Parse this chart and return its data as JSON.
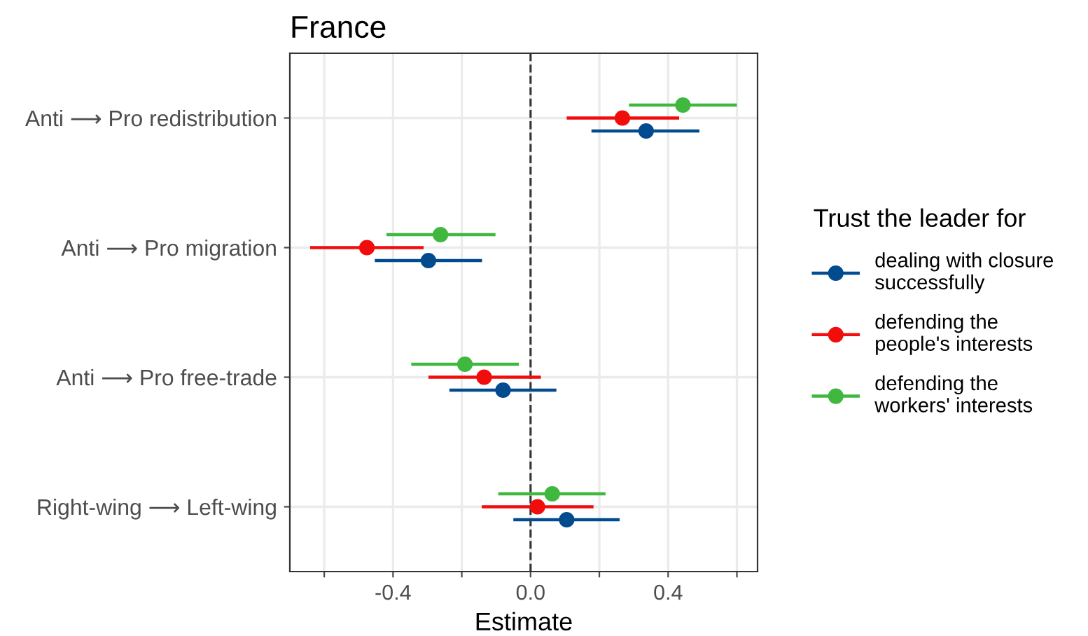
{
  "chart_data": {
    "type": "scatter",
    "orientation": "horizontal",
    "title": "France",
    "xlabel": "Estimate",
    "legend_title": "Trust the leader for",
    "categories": [
      "Anti ⟶ Pro redistribution",
      "Anti ⟶ Pro migration",
      "Anti ⟶ Pro free-trade",
      "Right-wing ⟶ Left-wing"
    ],
    "series": [
      {
        "name": "dealing with closure\nsuccessfully",
        "color": "#034b8f",
        "values": [
          0.336,
          -0.297,
          -0.08,
          0.105
        ],
        "errors": [
          [
            0.177,
            0.491
          ],
          [
            -0.453,
            -0.141
          ],
          [
            -0.236,
            0.075
          ],
          [
            -0.05,
            0.259
          ]
        ]
      },
      {
        "name": "defending the\npeople's interests",
        "color": "#f20d0d",
        "values": [
          0.267,
          -0.476,
          -0.135,
          0.02
        ],
        "errors": [
          [
            0.105,
            0.432
          ],
          [
            -0.641,
            -0.311
          ],
          [
            -0.297,
            0.03
          ],
          [
            -0.142,
            0.183
          ]
        ]
      },
      {
        "name": "defending the\nworkers' interests",
        "color": "#40b840",
        "values": [
          0.443,
          -0.262,
          -0.191,
          0.063
        ],
        "errors": [
          [
            0.286,
            0.6
          ],
          [
            -0.419,
            -0.102
          ],
          [
            -0.347,
            -0.034
          ],
          [
            -0.094,
            0.218
          ]
        ]
      }
    ],
    "xlim": [
      -0.7,
      0.66
    ],
    "xticks": [
      {
        "value": -0.6,
        "label": null
      },
      {
        "value": -0.4,
        "label": "-0.4"
      },
      {
        "value": -0.2,
        "label": null
      },
      {
        "value": 0,
        "label": "0.0"
      },
      {
        "value": 0.2,
        "label": null
      },
      {
        "value": 0.4,
        "label": "0.4"
      },
      {
        "value": 0.6,
        "label": null
      }
    ],
    "ref_lines": [
      {
        "axis": "x",
        "value": 0,
        "line_style": "dashed",
        "color": "#333333"
      }
    ],
    "grid": true,
    "legend": "right",
    "marker": "circle"
  }
}
